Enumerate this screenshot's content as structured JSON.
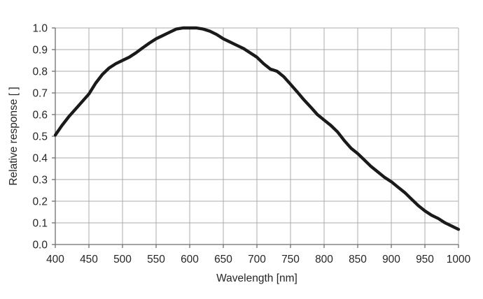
{
  "chart_data": {
    "type": "line",
    "title": "",
    "xlabel": "Wavelength [nm]",
    "ylabel": "Relative response [ ]",
    "xlim": [
      400,
      1000
    ],
    "ylim": [
      0.0,
      1.0
    ],
    "x_ticks": [
      "400",
      "450",
      "500",
      "550",
      "600",
      "650",
      "700",
      "750",
      "800",
      "850",
      "900",
      "950",
      "1000"
    ],
    "y_ticks": [
      "0.0",
      "0.1",
      "0.2",
      "0.3",
      "0.4",
      "0.5",
      "0.6",
      "0.7",
      "0.8",
      "0.9",
      "1.0"
    ],
    "grid": true,
    "legend_position": "none",
    "series": [
      {
        "name": "Relative response",
        "color": "#1a1a1a",
        "x": [
          400,
          410,
          420,
          430,
          440,
          450,
          460,
          470,
          480,
          490,
          500,
          510,
          520,
          530,
          540,
          550,
          560,
          570,
          580,
          590,
          600,
          610,
          620,
          630,
          640,
          650,
          660,
          670,
          680,
          690,
          700,
          710,
          720,
          730,
          740,
          750,
          760,
          770,
          780,
          790,
          800,
          810,
          820,
          830,
          840,
          850,
          860,
          870,
          880,
          890,
          900,
          910,
          920,
          930,
          940,
          950,
          960,
          970,
          980,
          990,
          1000
        ],
        "y": [
          0.505,
          0.55,
          0.59,
          0.625,
          0.66,
          0.695,
          0.745,
          0.785,
          0.815,
          0.835,
          0.85,
          0.865,
          0.885,
          0.908,
          0.93,
          0.95,
          0.965,
          0.98,
          0.995,
          1.0,
          1.0,
          1.0,
          0.995,
          0.985,
          0.97,
          0.95,
          0.935,
          0.92,
          0.905,
          0.885,
          0.865,
          0.835,
          0.81,
          0.8,
          0.775,
          0.74,
          0.705,
          0.668,
          0.635,
          0.6,
          0.575,
          0.55,
          0.52,
          0.48,
          0.445,
          0.42,
          0.39,
          0.36,
          0.335,
          0.31,
          0.29,
          0.265,
          0.24,
          0.21,
          0.18,
          0.155,
          0.135,
          0.12,
          0.1,
          0.085,
          0.07
        ]
      }
    ]
  },
  "style": {
    "background": "#ffffff",
    "grid_color": "#ababab",
    "axis_color": "#6e6e6e",
    "text_color": "#262626",
    "curve_color": "#1a1a1a"
  }
}
